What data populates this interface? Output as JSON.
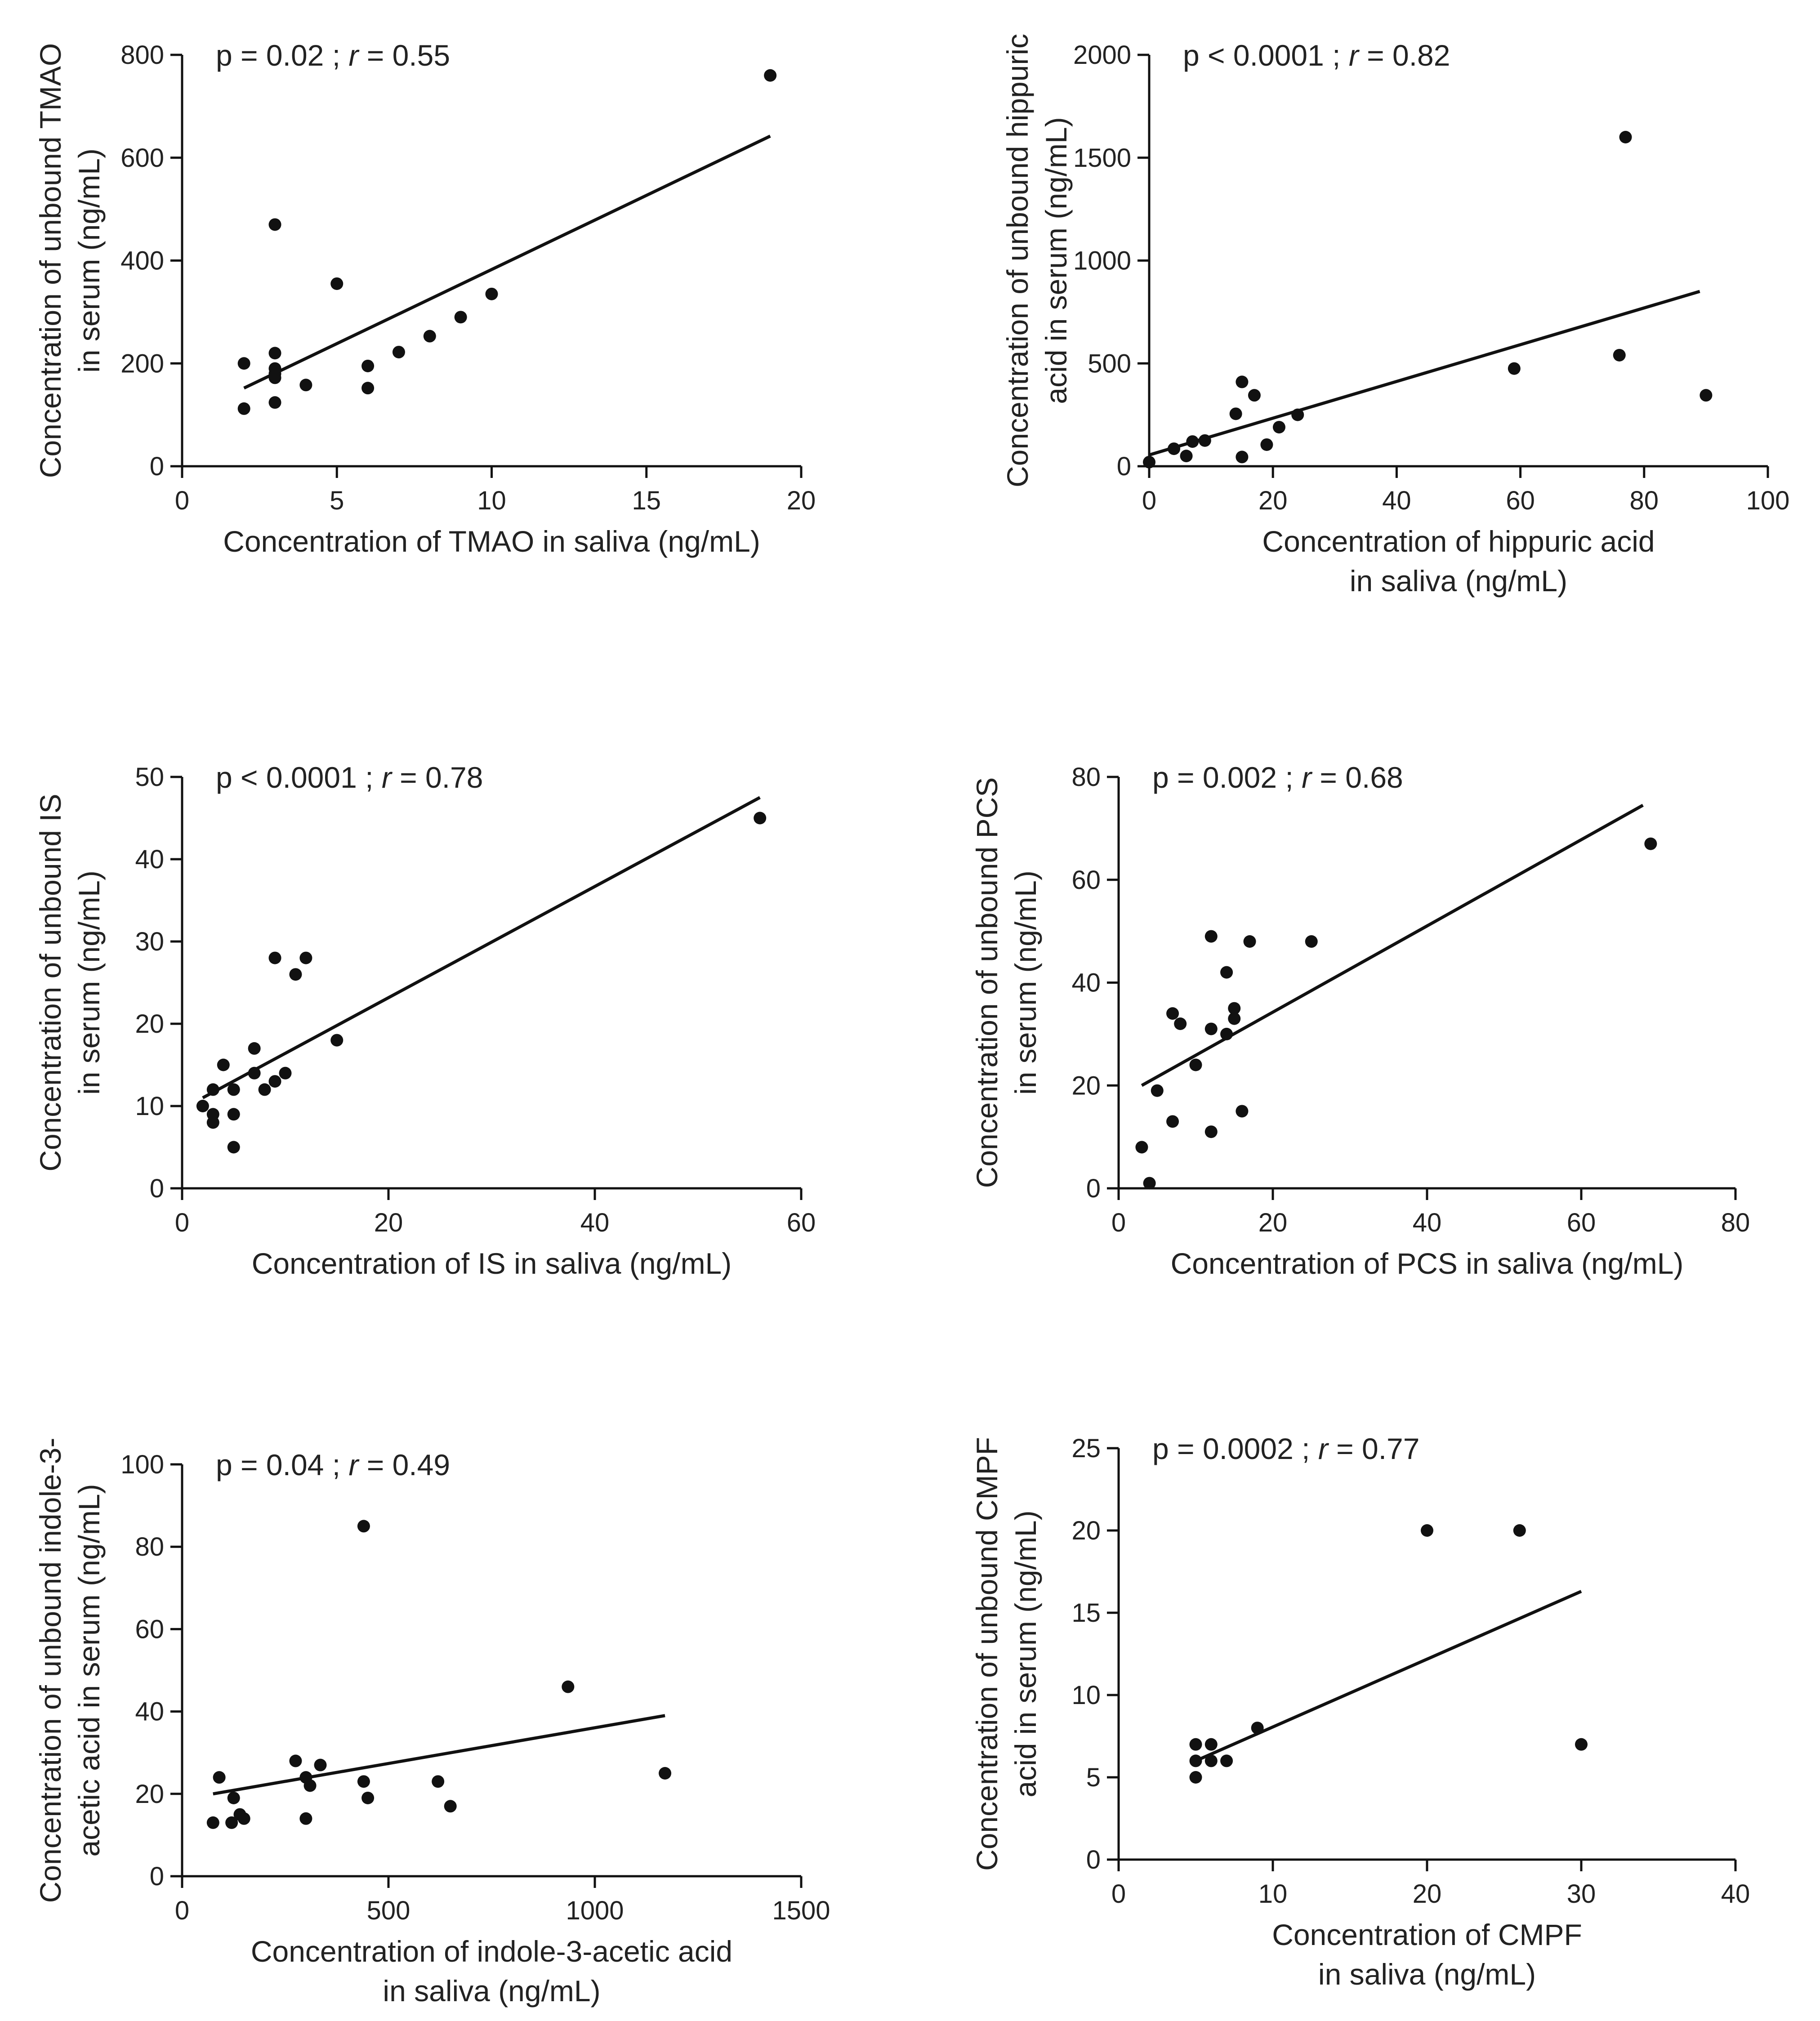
{
  "chart_data": [
    {
      "type": "scatter",
      "annotation": {
        "p": "p = 0.02",
        "sep": ";",
        "r_label": "r",
        "r_value": "= 0.55"
      },
      "ylabel": [
        "Concentration of unbound TMAO",
        "in serum (ng/mL)"
      ],
      "xlabel": [
        "Concentration of TMAO in saliva (ng/mL)"
      ],
      "xlim": [
        0,
        20
      ],
      "ylim": [
        0,
        800
      ],
      "xticks": [
        0,
        5,
        10,
        15,
        20
      ],
      "yticks": [
        0,
        200,
        400,
        600,
        800
      ],
      "points": [
        [
          2,
          112
        ],
        [
          2,
          200
        ],
        [
          3,
          470
        ],
        [
          3,
          220
        ],
        [
          3,
          190
        ],
        [
          3,
          180
        ],
        [
          3,
          172
        ],
        [
          3,
          124
        ],
        [
          4,
          158
        ],
        [
          5,
          355
        ],
        [
          6,
          195
        ],
        [
          6,
          152
        ],
        [
          7,
          222
        ],
        [
          8,
          253
        ],
        [
          9,
          290
        ],
        [
          10,
          335
        ],
        [
          19,
          760
        ]
      ],
      "fit": [
        [
          2,
          152
        ],
        [
          19,
          642
        ]
      ],
      "grid": false
    },
    {
      "type": "scatter",
      "annotation": {
        "p": "p < 0.0001",
        "sep": ";",
        "r_label": "r",
        "r_value": "= 0.82"
      },
      "ylabel": [
        "Concentration of unbound hippuric",
        "acid in serum (ng/mL)"
      ],
      "xlabel": [
        "Concentration of hippuric acid",
        "in saliva (ng/mL)"
      ],
      "xlim": [
        0,
        100
      ],
      "ylim": [
        0,
        2000
      ],
      "xticks": [
        0,
        20,
        40,
        60,
        80,
        100
      ],
      "yticks": [
        0,
        500,
        1000,
        1500,
        2000
      ],
      "points": [
        [
          0,
          20
        ],
        [
          4,
          85
        ],
        [
          6,
          50
        ],
        [
          7,
          120
        ],
        [
          9,
          125
        ],
        [
          14,
          255
        ],
        [
          15,
          410
        ],
        [
          15,
          45
        ],
        [
          17,
          345
        ],
        [
          19,
          105
        ],
        [
          21,
          190
        ],
        [
          24,
          250
        ],
        [
          59,
          475
        ],
        [
          76,
          540
        ],
        [
          77,
          1600
        ],
        [
          90,
          345
        ]
      ],
      "fit": [
        [
          0,
          55
        ],
        [
          89,
          850
        ]
      ],
      "grid": false
    },
    {
      "type": "scatter",
      "annotation": {
        "p": "p < 0.0001",
        "sep": ";",
        "r_label": "r",
        "r_value": "= 0.78"
      },
      "ylabel": [
        "Concentration of unbound IS",
        "in serum (ng/mL)"
      ],
      "xlabel": [
        "Concentration of IS in saliva (ng/mL)"
      ],
      "xlim": [
        0,
        60
      ],
      "ylim": [
        0,
        50
      ],
      "xticks": [
        0,
        20,
        40,
        60
      ],
      "yticks": [
        0,
        10,
        20,
        30,
        40,
        50
      ],
      "points": [
        [
          2,
          10
        ],
        [
          3,
          12
        ],
        [
          3,
          9
        ],
        [
          3,
          8
        ],
        [
          4,
          15
        ],
        [
          5,
          12
        ],
        [
          5,
          9
        ],
        [
          5,
          5
        ],
        [
          7,
          17
        ],
        [
          7,
          14
        ],
        [
          8,
          12
        ],
        [
          9,
          13
        ],
        [
          9,
          28
        ],
        [
          10,
          14
        ],
        [
          11,
          26
        ],
        [
          12,
          28
        ],
        [
          15,
          18
        ],
        [
          56,
          45
        ]
      ],
      "fit": [
        [
          2,
          11
        ],
        [
          56,
          47.5
        ]
      ],
      "grid": false
    },
    {
      "type": "scatter",
      "annotation": {
        "p": "p = 0.002",
        "sep": ";",
        "r_label": "r",
        "r_value": "= 0.68"
      },
      "ylabel": [
        "Concentration of unbound PCS",
        "in serum (ng/mL)"
      ],
      "xlabel": [
        "Concentration of PCS in saliva (ng/mL)"
      ],
      "xlim": [
        0,
        80
      ],
      "ylim": [
        0,
        80
      ],
      "xticks": [
        0,
        20,
        40,
        60,
        80
      ],
      "yticks": [
        0,
        20,
        40,
        60,
        80
      ],
      "points": [
        [
          3,
          8
        ],
        [
          4,
          1
        ],
        [
          5,
          19
        ],
        [
          7,
          34
        ],
        [
          7,
          13
        ],
        [
          8,
          32
        ],
        [
          10,
          24
        ],
        [
          12,
          49
        ],
        [
          12,
          31
        ],
        [
          12,
          11
        ],
        [
          14,
          42
        ],
        [
          14,
          30
        ],
        [
          15,
          35
        ],
        [
          15,
          33
        ],
        [
          16,
          15
        ],
        [
          17,
          48
        ],
        [
          25,
          48
        ],
        [
          69,
          67
        ]
      ],
      "fit": [
        [
          3,
          20
        ],
        [
          68,
          74.5
        ]
      ],
      "grid": false
    },
    {
      "type": "scatter",
      "annotation": {
        "p": "p = 0.04",
        "sep": ";",
        "r_label": "r",
        "r_value": "= 0.49"
      },
      "ylabel": [
        "Concentration of unbound indole-3-",
        "acetic acid in serum (ng/mL)"
      ],
      "xlabel": [
        "Concentration of indole-3-acetic acid",
        "in saliva (ng/mL)"
      ],
      "xlim": [
        0,
        1500
      ],
      "ylim": [
        0,
        100
      ],
      "xticks": [
        0,
        500,
        1000,
        1500
      ],
      "yticks": [
        0,
        20,
        40,
        60,
        80,
        100
      ],
      "points": [
        [
          75,
          13
        ],
        [
          90,
          24
        ],
        [
          120,
          13
        ],
        [
          125,
          19
        ],
        [
          140,
          15
        ],
        [
          150,
          14
        ],
        [
          275,
          28
        ],
        [
          300,
          24
        ],
        [
          300,
          14
        ],
        [
          310,
          22
        ],
        [
          335,
          27
        ],
        [
          440,
          85
        ],
        [
          440,
          23
        ],
        [
          450,
          19
        ],
        [
          620,
          23
        ],
        [
          650,
          17
        ],
        [
          935,
          46
        ],
        [
          1170,
          25
        ]
      ],
      "fit": [
        [
          75,
          20
        ],
        [
          1170,
          39
        ]
      ],
      "grid": false
    },
    {
      "type": "scatter",
      "annotation": {
        "p": "p = 0.0002",
        "sep": ";",
        "r_label": "r",
        "r_value": "= 0.77"
      },
      "ylabel": [
        "Concentration of unbound CMPF",
        "acid in serum (ng/mL)"
      ],
      "xlabel": [
        "Concentration of CMPF",
        "in saliva (ng/mL)"
      ],
      "xlim": [
        0,
        40
      ],
      "ylim": [
        0,
        25
      ],
      "xticks": [
        0,
        10,
        20,
        30,
        40
      ],
      "yticks": [
        0,
        5,
        10,
        15,
        20,
        25
      ],
      "points": [
        [
          5,
          7
        ],
        [
          5,
          6
        ],
        [
          5,
          5
        ],
        [
          6,
          7
        ],
        [
          6,
          6
        ],
        [
          7,
          6
        ],
        [
          9,
          8
        ],
        [
          20,
          20
        ],
        [
          26,
          20
        ],
        [
          30,
          7
        ]
      ],
      "fit": [
        [
          5,
          6
        ],
        [
          30,
          16.3
        ]
      ],
      "grid": false
    }
  ]
}
